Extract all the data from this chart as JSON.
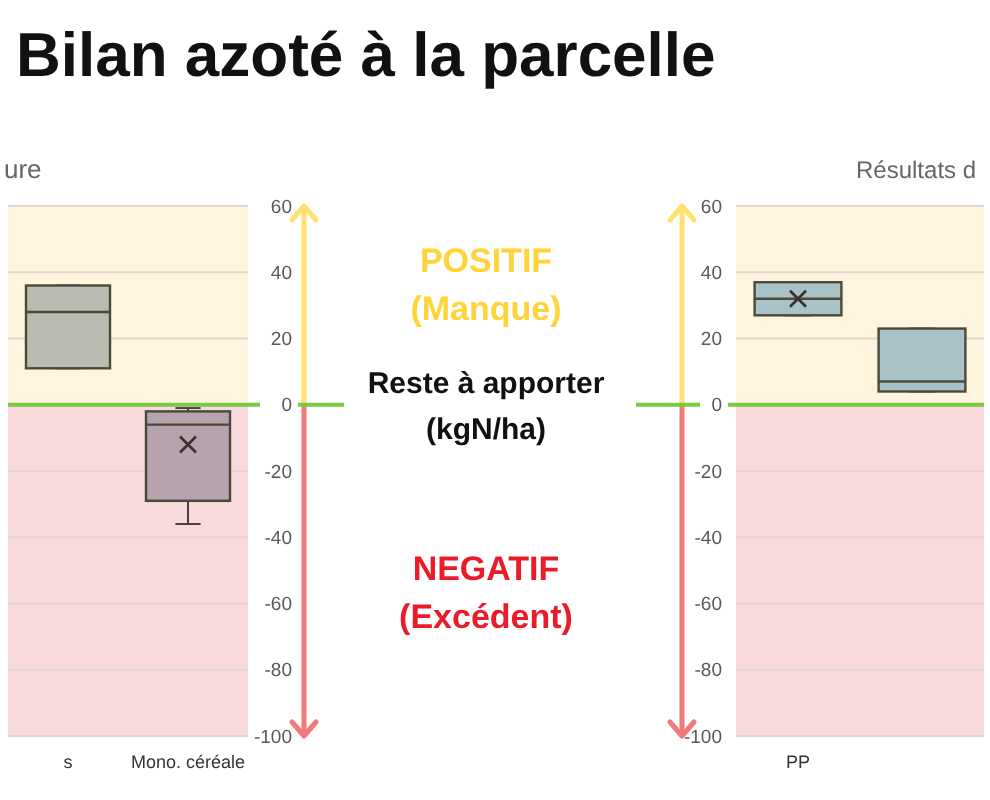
{
  "chart_data": [
    {
      "type": "box",
      "title": "Bilan azoté à la parcelle",
      "subtitle": "ure",
      "ylabel": "Reste à apporter (kgN/ha)",
      "categories": [
        "s",
        "Mono. céréale"
      ],
      "colors": [
        "#b8bcb1",
        "#b6a3ae"
      ],
      "boxes": [
        {
          "low": 11,
          "q1": 11,
          "median": 28,
          "q3": 36,
          "high": 36
        },
        {
          "low": -36,
          "q1": -29,
          "median": -6,
          "q3": -2,
          "high": -1,
          "mean": -12
        }
      ],
      "ylim": [
        -100,
        60
      ],
      "yticks": [
        -100,
        -80,
        -60,
        -40,
        -20,
        0,
        20,
        40,
        60
      ],
      "grid": "y",
      "annotations": [
        "POSITIF (Manque)",
        "NEGATIF (Excédent)"
      ],
      "bands": [
        {
          "axis": "y",
          "from": 0,
          "to": 60,
          "color": "#fff4dd"
        },
        {
          "axis": "y",
          "from": -100,
          "to": 0,
          "color": "#f8dadc"
        }
      ],
      "ref_lines": [
        {
          "axis": "y",
          "value": 0,
          "color": "#7ac943"
        }
      ]
    },
    {
      "type": "box",
      "title": "Résultats d",
      "categories": [
        "PP",
        null
      ],
      "colors": [
        "#a9c2c7",
        "#a9c2c7"
      ],
      "boxes": [
        {
          "low": 27,
          "q1": 27,
          "median": 32,
          "q3": 37,
          "high": 37,
          "mean": 32
        },
        {
          "low": 4,
          "q1": 4,
          "median": 7,
          "q3": 23,
          "high": 23
        }
      ],
      "ylim": [
        -100,
        60
      ],
      "yticks": [
        -100,
        -80,
        -60,
        -40,
        -20,
        0,
        20,
        40,
        60
      ],
      "grid": "y",
      "bands": [
        {
          "axis": "y",
          "from": 0,
          "to": 60,
          "color": "#fff4dd"
        },
        {
          "axis": "y",
          "from": -100,
          "to": 0,
          "color": "#f8dadc"
        }
      ],
      "ref_lines": [
        {
          "axis": "y",
          "value": 0,
          "color": "#7ac943"
        }
      ]
    }
  ]
}
